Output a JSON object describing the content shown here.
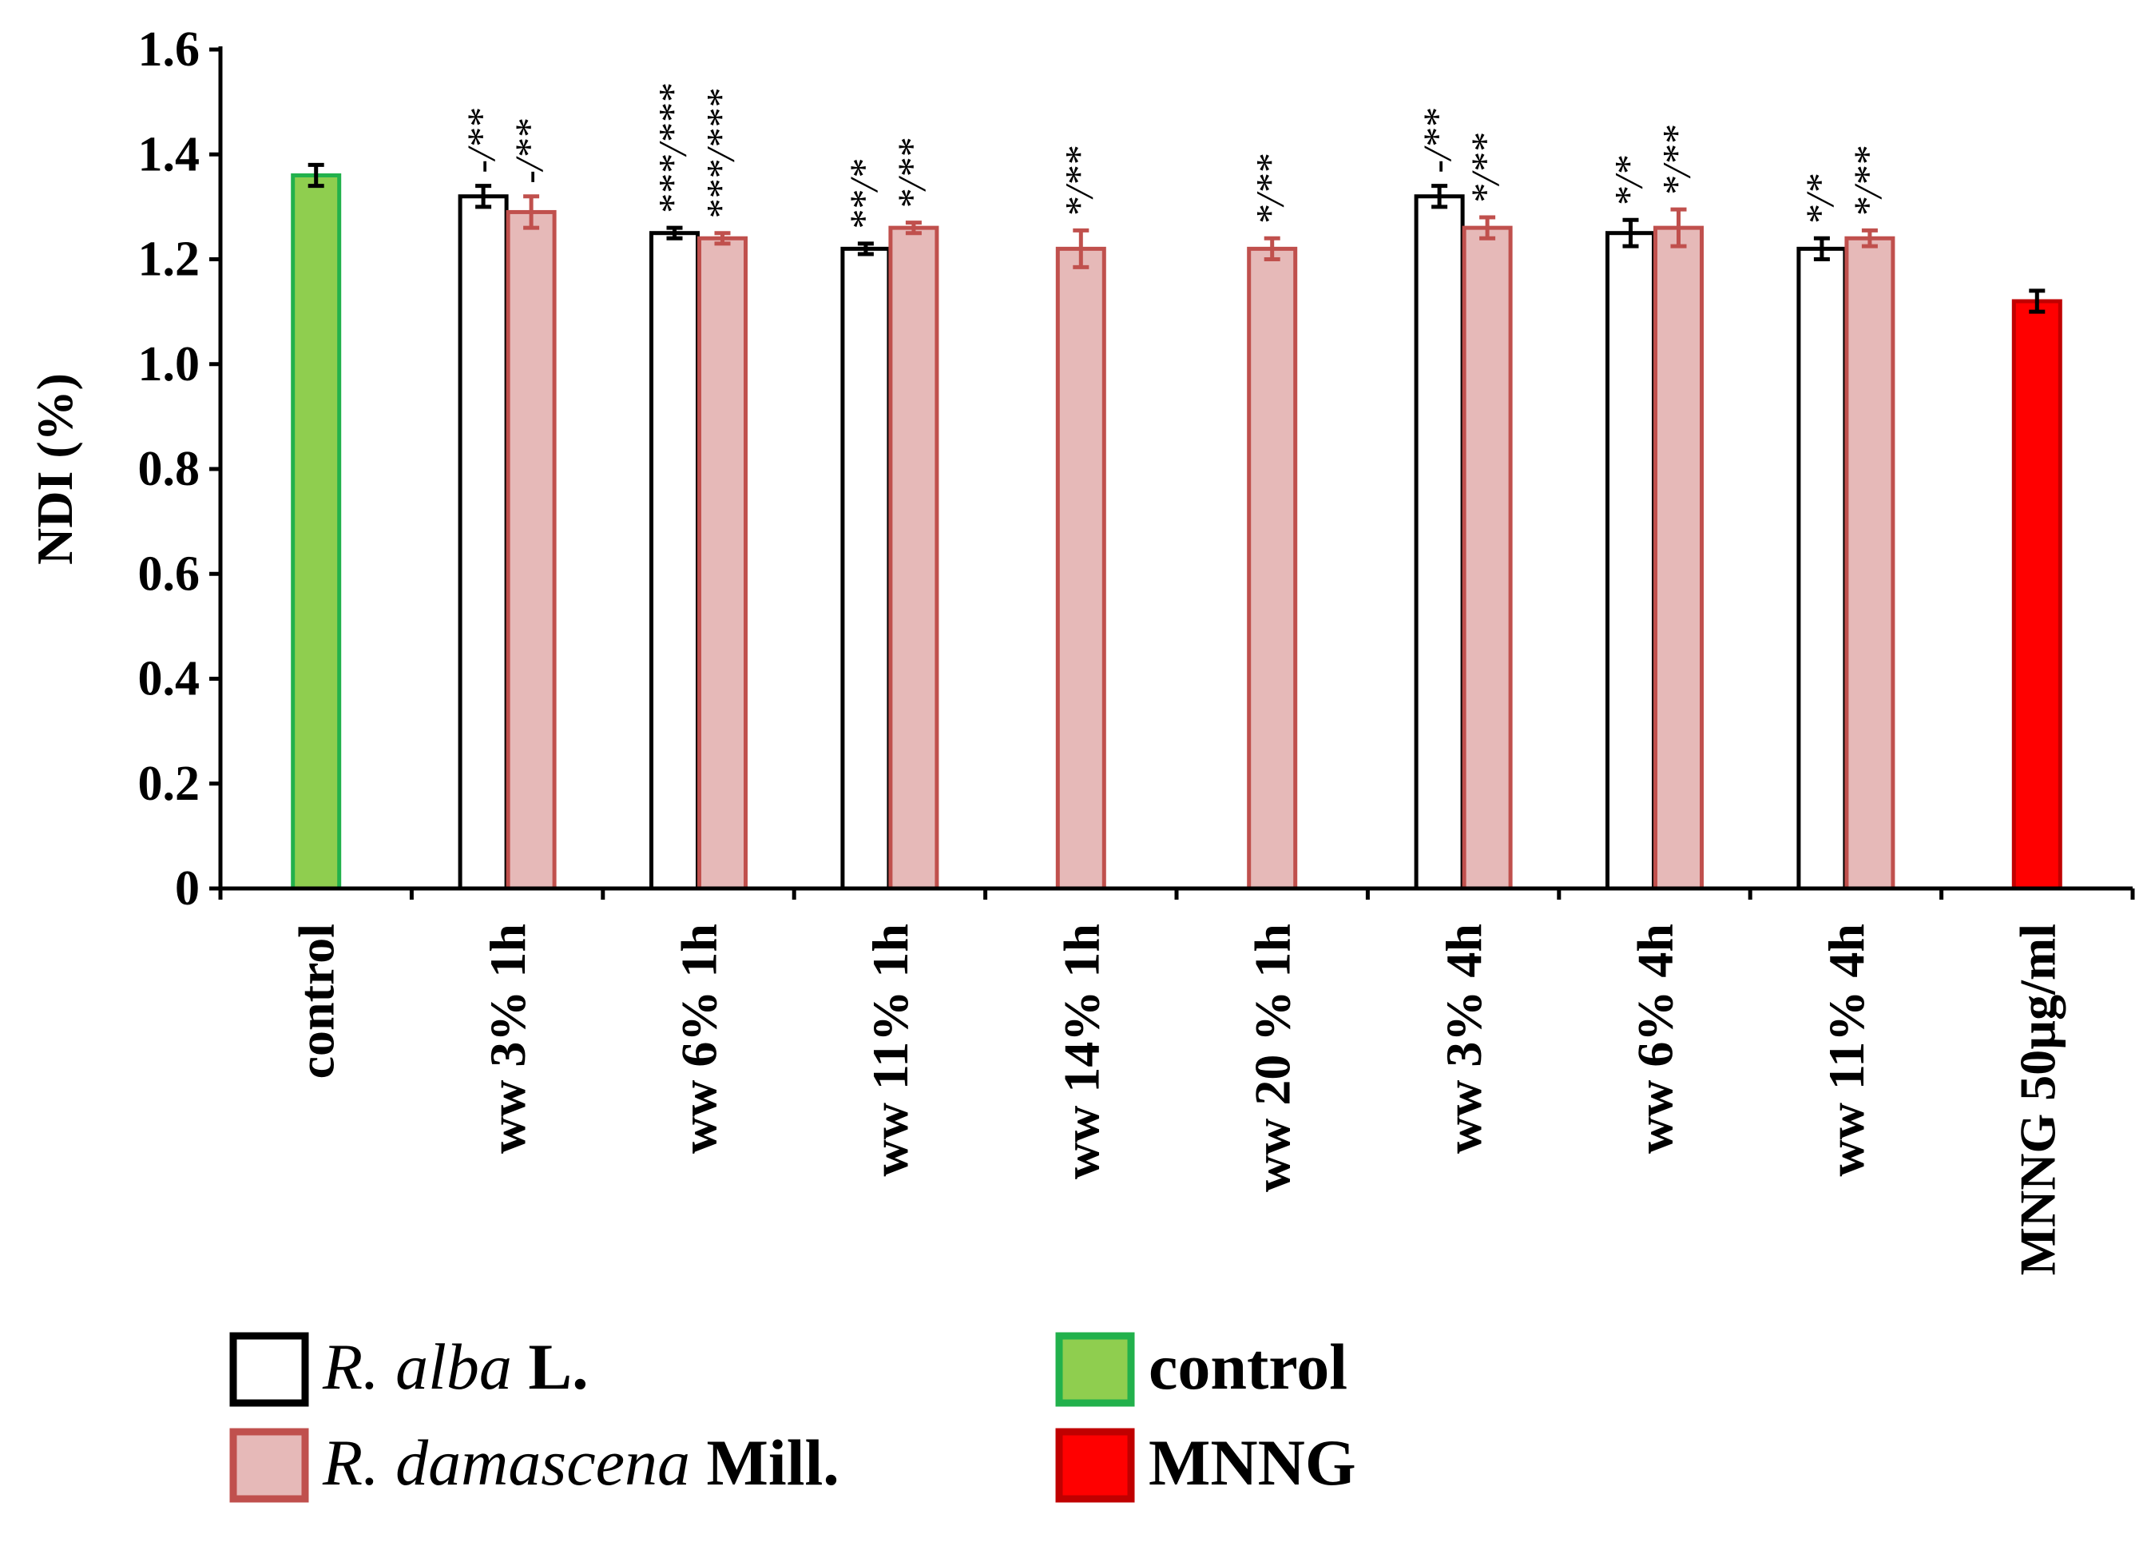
{
  "chart_data": {
    "type": "bar",
    "ylabel": "NDI (%)",
    "ylim": [
      0,
      1.6
    ],
    "yticks": [
      "0",
      "0.2",
      "0.4",
      "0.6",
      "0.8",
      "1.0",
      "1.2",
      "1.4",
      "1.6"
    ],
    "categories": [
      "control",
      "ww 3% 1h",
      "ww 6% 1h",
      "ww 11% 1h",
      "ww 14% 1h",
      "ww 20 % 1h",
      "ww 3% 4h",
      "ww 6% 4h",
      "ww 11% 4h",
      "MNNG 50µg/ml"
    ],
    "series": [
      {
        "name": "control",
        "color": "#8fce4f",
        "stroke": "#22b14c",
        "values": [
          1.36,
          null,
          null,
          null,
          null,
          null,
          null,
          null,
          null,
          null
        ],
        "errors": [
          0.02,
          null,
          null,
          null,
          null,
          null,
          null,
          null,
          null,
          null
        ]
      },
      {
        "name": "R. alba L.",
        "color": "#ffffff",
        "stroke": "#000000",
        "values": [
          null,
          1.32,
          1.25,
          1.22,
          null,
          null,
          1.32,
          1.25,
          1.22,
          null
        ],
        "errors": [
          null,
          0.02,
          0.01,
          0.01,
          null,
          null,
          0.02,
          0.025,
          0.02,
          null
        ],
        "annotations": [
          null,
          "-/**",
          "***/***",
          "**/*",
          null,
          null,
          "-/**",
          "*/*",
          "*/*",
          null
        ]
      },
      {
        "name": "R. damascena Mill.",
        "color": "#e6b9b8",
        "stroke": "#c0504d",
        "values": [
          null,
          1.29,
          1.24,
          1.26,
          1.22,
          1.22,
          1.26,
          1.26,
          1.24,
          null
        ],
        "errors": [
          null,
          0.03,
          0.01,
          0.01,
          0.035,
          0.02,
          0.02,
          0.035,
          0.015,
          null
        ],
        "annotations": [
          null,
          "-/**",
          "***/***",
          "*/**",
          "*/**",
          "*/**",
          "*/**",
          "*/**",
          "*/**",
          null
        ]
      },
      {
        "name": "MNNG",
        "color": "#ff0000",
        "stroke": "#c00000",
        "values": [
          null,
          null,
          null,
          null,
          null,
          null,
          null,
          null,
          null,
          1.12
        ],
        "errors": [
          null,
          null,
          null,
          null,
          null,
          null,
          null,
          null,
          null,
          0.02
        ]
      }
    ],
    "legend": {
      "placement": "bottom",
      "items": [
        {
          "italic": "R. alba",
          "plain": "L.",
          "series": 1
        },
        {
          "italic": "R. damascena",
          "plain": "Mill.",
          "series": 2
        },
        {
          "italic": "",
          "plain": "control",
          "series": 0
        },
        {
          "italic": "",
          "plain": "MNNG",
          "series": 3
        }
      ]
    }
  }
}
